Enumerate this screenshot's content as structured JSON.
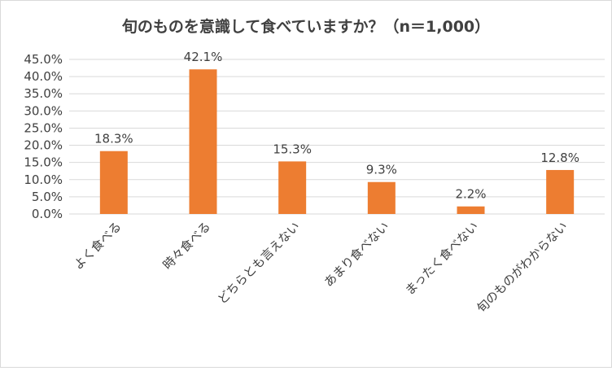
{
  "chart_data": {
    "type": "bar",
    "title": "旬のものを意識して食べていますか？（n＝1,000）",
    "categories": [
      "よく食べる",
      "時々食べる",
      "どちらとも言えない",
      "あまり食べない",
      "まったく食べない",
      "旬のものがわからない"
    ],
    "values": [
      18.3,
      42.1,
      15.3,
      9.3,
      2.2,
      12.8
    ],
    "value_labels": [
      "18.3%",
      "42.1%",
      "15.3%",
      "9.3%",
      "2.2%",
      "12.8%"
    ],
    "y_ticks": [
      "0.0%",
      "5.0%",
      "10.0%",
      "15.0%",
      "20.0%",
      "25.0%",
      "30.0%",
      "35.0%",
      "40.0%",
      "45.0%"
    ],
    "ylim": [
      0,
      45
    ],
    "xlabel": "",
    "ylabel": "",
    "grid": true,
    "legend": "none",
    "colors": {
      "bar": "#ED7D31",
      "grid": "#d9d9d9",
      "text": "#404040"
    }
  }
}
